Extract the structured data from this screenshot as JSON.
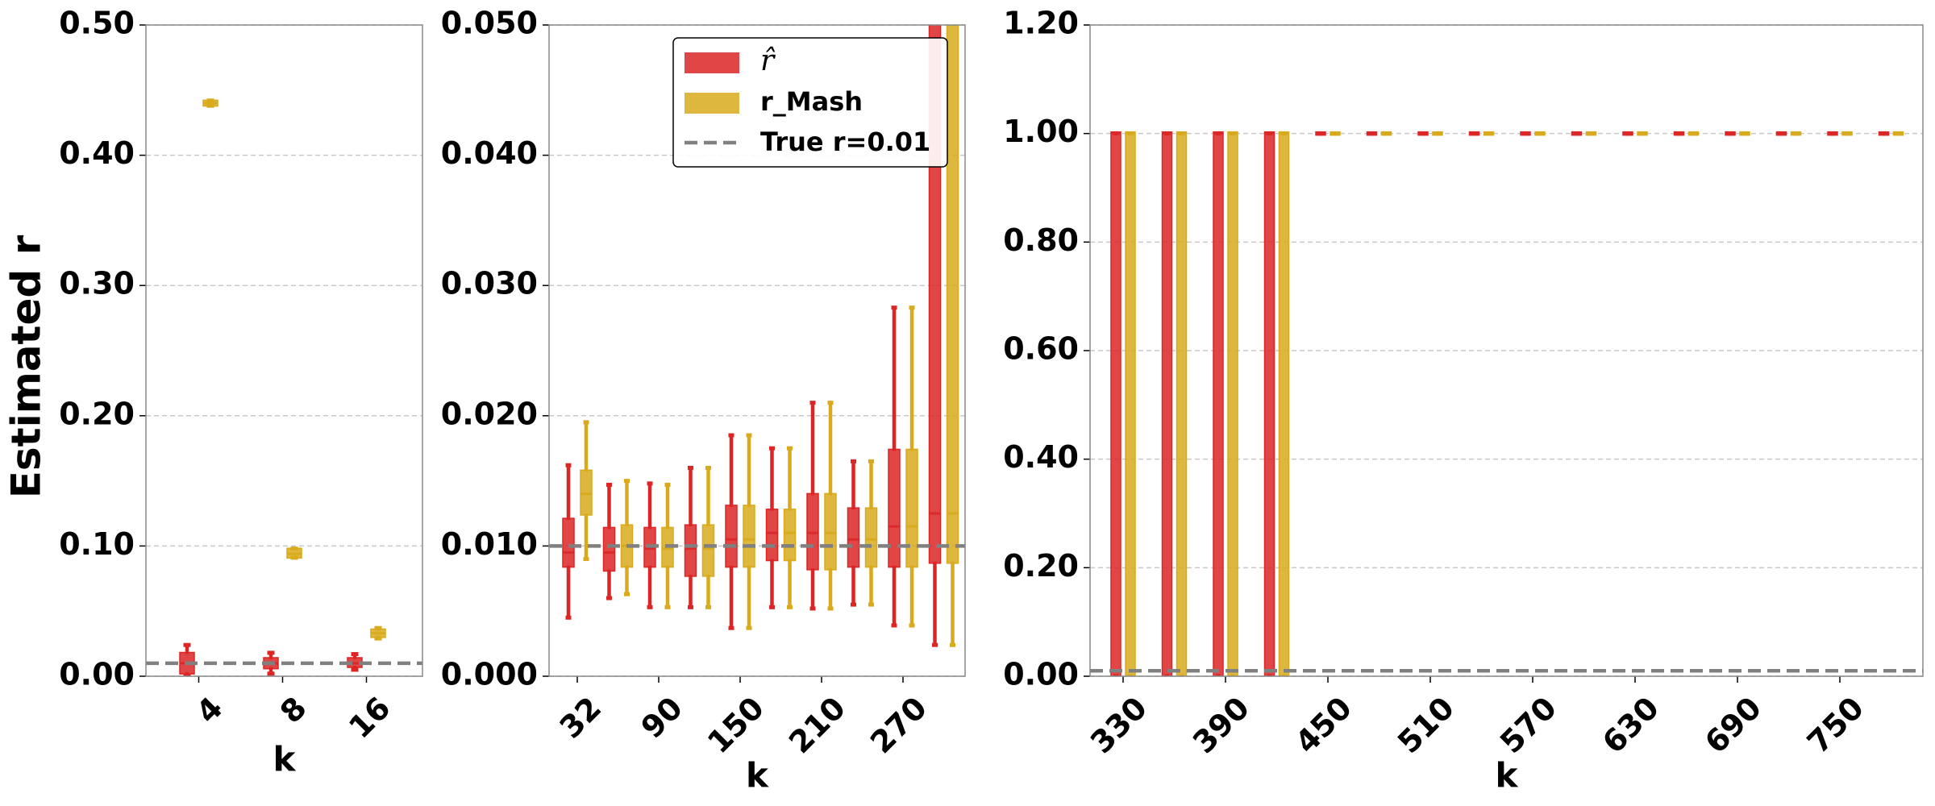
{
  "chart_data": [
    {
      "type": "box",
      "y_label": "Estimated r",
      "x_label": "k",
      "categories": [
        "4",
        "8",
        "16"
      ],
      "ylim": [
        0,
        0.5
      ],
      "yticks": [
        {
          "value": 0,
          "label": "0.00"
        },
        {
          "value": 0.1,
          "label": "0.10"
        },
        {
          "value": 0.2,
          "label": "0.20"
        },
        {
          "value": 0.3,
          "label": "0.30"
        },
        {
          "value": 0.4,
          "label": "0.40"
        },
        {
          "value": 0.5,
          "label": "0.50"
        }
      ],
      "grid": true,
      "reference_line": {
        "value": 0.01
      },
      "series": [
        {
          "color": "#dc2626",
          "values": [
            {
              "low": 0,
              "q1": 0.003,
              "median": 0.01,
              "q3": 0.017,
              "high": 0.024
            },
            {
              "low": 0.002,
              "q1": 0.007,
              "median": 0.01,
              "q3": 0.013,
              "high": 0.018
            },
            {
              "low": 0.005,
              "q1": 0.008,
              "median": 0.01,
              "q3": 0.013,
              "high": 0.017
            }
          ]
        },
        {
          "color": "#d8aa1c",
          "values": [
            {
              "low": 0.438,
              "q1": 0.439,
              "median": 0.44,
              "q3": 0.441,
              "high": 0.442
            },
            {
              "low": 0.091,
              "q1": 0.092,
              "median": 0.094,
              "q3": 0.097,
              "high": 0.098
            },
            {
              "low": 0.029,
              "q1": 0.031,
              "median": 0.033,
              "q3": 0.035,
              "high": 0.037
            }
          ]
        }
      ]
    },
    {
      "type": "box",
      "x_label": "k",
      "categories": [
        "32",
        null,
        "90",
        null,
        "150",
        null,
        "210",
        null,
        "270",
        null
      ],
      "ylim": [
        0,
        0.05
      ],
      "yticks": [
        {
          "value": 0,
          "label": "0.000"
        },
        {
          "value": 0.01,
          "label": "0.010"
        },
        {
          "value": 0.02,
          "label": "0.020"
        },
        {
          "value": 0.03,
          "label": "0.030"
        },
        {
          "value": 0.04,
          "label": "0.040"
        },
        {
          "value": 0.05,
          "label": "0.050"
        }
      ],
      "grid": true,
      "legend": "upper right",
      "reference_line": {
        "value": 0.01,
        "label": "True r=0.01"
      },
      "series": [
        {
          "name": "r̂",
          "color": "#dc2626",
          "values": [
            {
              "low": 0.0045,
              "q1": 0.0085,
              "median": 0.0095,
              "q3": 0.012,
              "high": 0.0162
            },
            {
              "low": 0.006,
              "q1": 0.0082,
              "median": 0.0095,
              "q3": 0.0113,
              "high": 0.0147
            },
            {
              "low": 0.0053,
              "q1": 0.0085,
              "median": 0.0098,
              "q3": 0.0113,
              "high": 0.0148
            },
            {
              "low": 0.0053,
              "q1": 0.0078,
              "median": 0.0098,
              "q3": 0.0115,
              "high": 0.016
            },
            {
              "low": 0.0037,
              "q1": 0.0085,
              "median": 0.0105,
              "q3": 0.013,
              "high": 0.0185
            },
            {
              "low": 0.0053,
              "q1": 0.009,
              "median": 0.011,
              "q3": 0.0127,
              "high": 0.0175
            },
            {
              "low": 0.0052,
              "q1": 0.0083,
              "median": 0.011,
              "q3": 0.0139,
              "high": 0.021
            },
            {
              "low": 0.0055,
              "q1": 0.0085,
              "median": 0.0105,
              "q3": 0.0128,
              "high": 0.0165
            },
            {
              "low": 0.0039,
              "q1": 0.0085,
              "median": 0.0115,
              "q3": 0.0173,
              "high": 0.0283
            },
            {
              "low": 0.0024,
              "q1": 0.0088,
              "median": 0.0125,
              "q3": 1,
              "high": 1
            }
          ]
        },
        {
          "name": "r_Mash",
          "color": "#d8aa1c",
          "values": [
            {
              "low": 0.009,
              "q1": 0.0125,
              "median": 0.014,
              "q3": 0.0157,
              "high": 0.0195
            },
            {
              "low": 0.0063,
              "q1": 0.0085,
              "median": 0.01,
              "q3": 0.0115,
              "high": 0.015
            },
            {
              "low": 0.0053,
              "q1": 0.0085,
              "median": 0.0098,
              "q3": 0.0113,
              "high": 0.0147
            },
            {
              "low": 0.0053,
              "q1": 0.0078,
              "median": 0.0098,
              "q3": 0.0115,
              "high": 0.016
            },
            {
              "low": 0.0037,
              "q1": 0.0085,
              "median": 0.0105,
              "q3": 0.013,
              "high": 0.0185
            },
            {
              "low": 0.0053,
              "q1": 0.009,
              "median": 0.011,
              "q3": 0.0127,
              "high": 0.0175
            },
            {
              "low": 0.0052,
              "q1": 0.0083,
              "median": 0.011,
              "q3": 0.0139,
              "high": 0.021
            },
            {
              "low": 0.0055,
              "q1": 0.0085,
              "median": 0.0105,
              "q3": 0.0128,
              "high": 0.0165
            },
            {
              "low": 0.0039,
              "q1": 0.0085,
              "median": 0.0115,
              "q3": 0.0173,
              "high": 0.0283
            },
            {
              "low": 0.0024,
              "q1": 0.0088,
              "median": 0.0125,
              "q3": 1,
              "high": 1
            }
          ]
        }
      ]
    },
    {
      "type": "box",
      "x_label": "k",
      "categories": [
        "330",
        null,
        "390",
        null,
        "450",
        null,
        "510",
        null,
        "570",
        null,
        "630",
        null,
        "690",
        null,
        "750",
        null
      ],
      "ylim": [
        0,
        1.2
      ],
      "yticks": [
        {
          "value": 0,
          "label": "0.00"
        },
        {
          "value": 0.2,
          "label": "0.20"
        },
        {
          "value": 0.4,
          "label": "0.40"
        },
        {
          "value": 0.6,
          "label": "0.60"
        },
        {
          "value": 0.8,
          "label": "0.80"
        },
        {
          "value": 1,
          "label": "1.00"
        },
        {
          "value": 1.2,
          "label": "1.20"
        }
      ],
      "grid": true,
      "reference_line": {
        "value": 0.01
      },
      "series": [
        {
          "color": "#dc2626",
          "values": [
            {
              "low": 0,
              "q1": 0,
              "median": 1,
              "q3": 1,
              "high": 1
            },
            {
              "low": 0,
              "q1": 0,
              "median": 1,
              "q3": 1,
              "high": 1
            },
            {
              "low": 0,
              "q1": 0,
              "median": 1,
              "q3": 1,
              "high": 1
            },
            {
              "low": 0,
              "q1": 0,
              "median": 1,
              "q3": 1,
              "high": 1
            },
            {
              "low": 1,
              "q1": 1,
              "median": 1,
              "q3": 1,
              "high": 1
            },
            {
              "low": 1,
              "q1": 1,
              "median": 1,
              "q3": 1,
              "high": 1
            },
            {
              "low": 1,
              "q1": 1,
              "median": 1,
              "q3": 1,
              "high": 1
            },
            {
              "low": 1,
              "q1": 1,
              "median": 1,
              "q3": 1,
              "high": 1
            },
            {
              "low": 1,
              "q1": 1,
              "median": 1,
              "q3": 1,
              "high": 1
            },
            {
              "low": 1,
              "q1": 1,
              "median": 1,
              "q3": 1,
              "high": 1
            },
            {
              "low": 1,
              "q1": 1,
              "median": 1,
              "q3": 1,
              "high": 1
            },
            {
              "low": 1,
              "q1": 1,
              "median": 1,
              "q3": 1,
              "high": 1
            },
            {
              "low": 1,
              "q1": 1,
              "median": 1,
              "q3": 1,
              "high": 1
            },
            {
              "low": 1,
              "q1": 1,
              "median": 1,
              "q3": 1,
              "high": 1
            },
            {
              "low": 1,
              "q1": 1,
              "median": 1,
              "q3": 1,
              "high": 1
            },
            {
              "low": 1,
              "q1": 1,
              "median": 1,
              "q3": 1,
              "high": 1
            }
          ]
        },
        {
          "color": "#d8aa1c",
          "values": [
            {
              "low": 0,
              "q1": 0,
              "median": 1,
              "q3": 1,
              "high": 1
            },
            {
              "low": 0,
              "q1": 0,
              "median": 1,
              "q3": 1,
              "high": 1
            },
            {
              "low": 0,
              "q1": 0,
              "median": 1,
              "q3": 1,
              "high": 1
            },
            {
              "low": 0,
              "q1": 0,
              "median": 1,
              "q3": 1,
              "high": 1
            },
            {
              "low": 1,
              "q1": 1,
              "median": 1,
              "q3": 1,
              "high": 1
            },
            {
              "low": 1,
              "q1": 1,
              "median": 1,
              "q3": 1,
              "high": 1
            },
            {
              "low": 1,
              "q1": 1,
              "median": 1,
              "q3": 1,
              "high": 1
            },
            {
              "low": 1,
              "q1": 1,
              "median": 1,
              "q3": 1,
              "high": 1
            },
            {
              "low": 1,
              "q1": 1,
              "median": 1,
              "q3": 1,
              "high": 1
            },
            {
              "low": 1,
              "q1": 1,
              "median": 1,
              "q3": 1,
              "high": 1
            },
            {
              "low": 1,
              "q1": 1,
              "median": 1,
              "q3": 1,
              "high": 1
            },
            {
              "low": 1,
              "q1": 1,
              "median": 1,
              "q3": 1,
              "high": 1
            },
            {
              "low": 1,
              "q1": 1,
              "median": 1,
              "q3": 1,
              "high": 1
            },
            {
              "low": 1,
              "q1": 1,
              "median": 1,
              "q3": 1,
              "high": 1
            },
            {
              "low": 1,
              "q1": 1,
              "median": 1,
              "q3": 1,
              "high": 1
            },
            {
              "low": 1,
              "q1": 1,
              "median": 1,
              "q3": 1,
              "high": 1
            }
          ]
        }
      ]
    }
  ]
}
